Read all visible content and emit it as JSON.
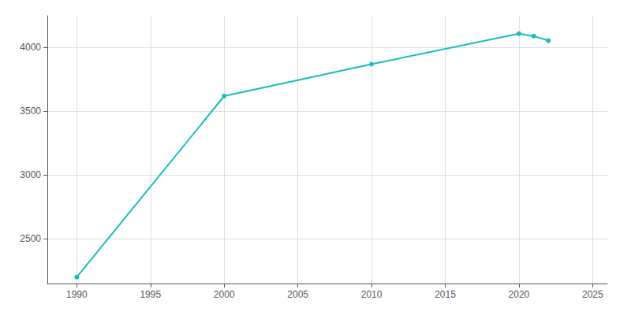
{
  "chart_data": {
    "type": "line",
    "x": [
      1990,
      2000,
      2010,
      2020,
      2021,
      2022
    ],
    "values": [
      2200,
      3620,
      3870,
      4110,
      4090,
      4055
    ],
    "color": "#1abcbe",
    "marker": "circle",
    "xlim": [
      1988,
      2026
    ],
    "ylim": [
      2150,
      4250
    ],
    "xticks": [
      1990,
      1995,
      2000,
      2005,
      2010,
      2015,
      2020,
      2025
    ],
    "yticks": [
      2500,
      3000,
      3500,
      4000
    ],
    "grid": true
  }
}
